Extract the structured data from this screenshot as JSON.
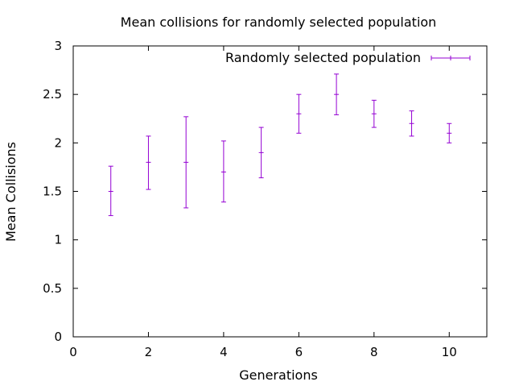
{
  "chart_data": {
    "type": "scatter",
    "title": "Mean collisions for randomly selected population",
    "xlabel": "Generations",
    "ylabel": "Mean Collisions",
    "xlim": [
      0,
      11
    ],
    "ylim": [
      0,
      3
    ],
    "xticks": [
      0,
      2,
      4,
      6,
      8,
      10
    ],
    "xtick_labels": [
      "0",
      "2",
      "4",
      "6",
      "8",
      "10"
    ],
    "yticks": [
      0,
      0.5,
      1,
      1.5,
      2,
      2.5,
      3
    ],
    "ytick_labels": [
      "0",
      "0.5",
      "1",
      "1.5",
      "2",
      "2.5",
      "3"
    ],
    "grid": false,
    "legend_position": "top-right",
    "series": [
      {
        "name": "Randomly selected population",
        "color": "#9400d3",
        "style": "errorbars",
        "x": [
          1,
          2,
          3,
          4,
          5,
          6,
          7,
          8,
          9,
          10
        ],
        "y": [
          1.5,
          1.8,
          1.8,
          1.7,
          1.9,
          2.3,
          2.5,
          2.3,
          2.2,
          2.1
        ],
        "y_low": [
          1.25,
          1.52,
          1.33,
          1.39,
          1.64,
          2.1,
          2.29,
          2.16,
          2.07,
          2.0
        ],
        "y_high": [
          1.76,
          2.07,
          2.27,
          2.02,
          2.16,
          2.5,
          2.71,
          2.44,
          2.33,
          2.2
        ]
      }
    ]
  }
}
